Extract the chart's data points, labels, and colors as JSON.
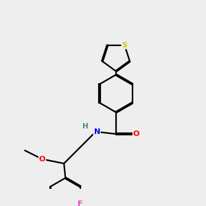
{
  "background_color": "#eeeeee",
  "atom_colors": {
    "S": "#cccc00",
    "O": "#ff0000",
    "N": "#0000ee",
    "H": "#448888",
    "F": "#ee44bb",
    "C": "#000000"
  },
  "bond_color": "#000000",
  "bond_width": 1.6
}
